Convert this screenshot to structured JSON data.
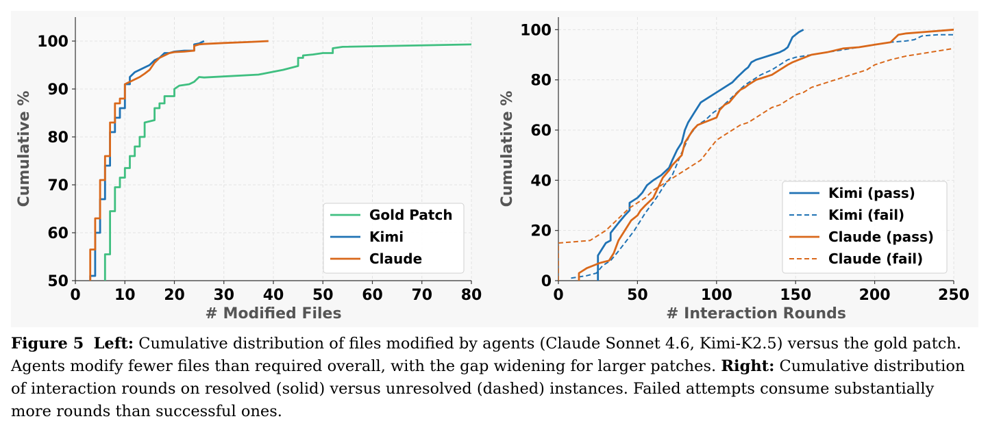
{
  "chart_data": [
    {
      "type": "line",
      "xlabel": "# Modified Files",
      "ylabel": "Cumulative %",
      "xlim": [
        0,
        80
      ],
      "ylim": [
        50,
        105
      ],
      "xticks": [
        "0",
        "10",
        "20",
        "30",
        "40",
        "50",
        "60",
        "70",
        "80"
      ],
      "yticks": [
        "50",
        "60",
        "70",
        "80",
        "90",
        "100"
      ],
      "grid": true,
      "legend_position": "lower-right",
      "series": [
        {
          "name": "Gold Patch",
          "color": "#3fbf80",
          "style": "solid",
          "x": [
            6,
            6,
            7,
            7,
            8,
            8,
            9,
            9,
            10,
            10,
            11,
            11,
            12,
            12,
            13,
            13,
            14,
            14,
            16,
            16,
            17,
            17,
            18,
            18,
            20,
            20,
            21,
            23,
            24,
            25,
            26,
            37,
            42,
            45,
            45,
            46,
            46,
            48,
            50,
            52,
            52,
            54,
            80
          ],
          "y": [
            50,
            55.5,
            55.5,
            64.5,
            64.5,
            69.5,
            69.5,
            71.5,
            71.5,
            73.5,
            73.5,
            76,
            76,
            78,
            78,
            80,
            80,
            83,
            83.5,
            86,
            86,
            87,
            87,
            88.5,
            88.5,
            90,
            90.7,
            91,
            91.5,
            92.5,
            92.4,
            93,
            94,
            94.8,
            96.5,
            96.5,
            97,
            97.2,
            97.5,
            97.5,
            98.5,
            98.8,
            99.3
          ]
        },
        {
          "name": "Kimi",
          "color": "#1f72b4",
          "style": "solid",
          "x": [
            3,
            3,
            4,
            4,
            5,
            5,
            6,
            6,
            7,
            7,
            8,
            8,
            9,
            9,
            10,
            10,
            11,
            11,
            12,
            13,
            14,
            15,
            16,
            17,
            18,
            19,
            20,
            22,
            24,
            24,
            25,
            26
          ],
          "y": [
            50,
            51,
            51,
            60,
            60,
            67,
            67,
            74,
            74,
            81,
            81,
            84,
            84,
            86,
            86,
            91,
            91,
            92.5,
            93.5,
            94,
            94.5,
            95,
            96,
            96.5,
            97.5,
            97.5,
            97.8,
            98,
            98,
            99.3,
            99.5,
            100
          ]
        },
        {
          "name": "Claude",
          "color": "#d9681a",
          "style": "solid",
          "x": [
            3,
            3,
            4,
            4,
            5,
            5,
            6,
            6,
            7,
            7,
            8,
            8,
            9,
            9,
            10,
            10,
            11,
            12,
            13,
            14,
            15,
            16,
            17,
            18,
            19,
            20,
            22,
            24,
            24,
            25,
            26,
            30,
            35,
            39
          ],
          "y": [
            50,
            56.5,
            56.5,
            63,
            63,
            71,
            71,
            76,
            76,
            83,
            83,
            87,
            87,
            88,
            88,
            91,
            91.5,
            92,
            92.5,
            93.2,
            94,
            95.5,
            96.5,
            97,
            97.5,
            97.7,
            97.8,
            98,
            99,
            99.3,
            99.4,
            99.6,
            99.8,
            100
          ]
        }
      ]
    },
    {
      "type": "line",
      "xlabel": "# Interaction Rounds",
      "ylabel": "Cumulative %",
      "xlim": [
        0,
        250
      ],
      "ylim": [
        0,
        105
      ],
      "xticks": [
        "0",
        "50",
        "100",
        "150",
        "200",
        "250"
      ],
      "yticks": [
        "0",
        "20",
        "40",
        "60",
        "80",
        "100"
      ],
      "grid": true,
      "legend_position": "lower-right",
      "series": [
        {
          "name": "Kimi (pass)",
          "color": "#1f72b4",
          "style": "solid",
          "x": [
            25,
            25,
            28,
            30,
            33,
            33,
            38,
            42,
            45,
            45,
            50,
            53,
            56,
            60,
            65,
            70,
            72,
            75,
            78,
            80,
            82,
            86,
            88,
            90,
            95,
            100,
            105,
            110,
            113,
            118,
            120,
            122,
            125,
            130,
            135,
            140,
            143,
            145,
            148,
            152,
            155
          ],
          "y": [
            0,
            10,
            13,
            15,
            16,
            19,
            23,
            26,
            28,
            31,
            33,
            35,
            38,
            40,
            42,
            45,
            48,
            52,
            55,
            60,
            63,
            67,
            69,
            71,
            73,
            75,
            77,
            79,
            81,
            84,
            85,
            87,
            88,
            89,
            90,
            91,
            92,
            93,
            97,
            99,
            100
          ]
        },
        {
          "name": "Kimi (fail)",
          "color": "#1f72b4",
          "style": "dashed",
          "x": [
            8,
            13,
            18,
            24,
            28,
            33,
            37,
            42,
            48,
            55,
            62,
            67,
            72,
            78,
            83,
            88,
            93,
            98,
            103,
            108,
            113,
            118,
            123,
            128,
            135,
            140,
            145,
            150,
            160,
            170,
            180,
            190,
            200,
            210,
            220,
            225,
            230,
            240,
            250
          ],
          "y": [
            1,
            1.5,
            2,
            3,
            6,
            8,
            11,
            15,
            20,
            27,
            33,
            38,
            42,
            51,
            58,
            62,
            64,
            67,
            69,
            72,
            75,
            78,
            80,
            82,
            84,
            86,
            88,
            89,
            90,
            91,
            92,
            93,
            94,
            95,
            95.5,
            96,
            97.5,
            98,
            98
          ]
        },
        {
          "name": "Claude (pass)",
          "color": "#d9681a",
          "style": "solid",
          "x": [
            13,
            13,
            18,
            22,
            26,
            32,
            35,
            38,
            42,
            46,
            50,
            52,
            55,
            60,
            63,
            66,
            70,
            72,
            75,
            78,
            80,
            82,
            85,
            88,
            92,
            96,
            100,
            102,
            105,
            108,
            112,
            115,
            118,
            120,
            125,
            130,
            135,
            140,
            145,
            148,
            152,
            156,
            160,
            170,
            180,
            190,
            200,
            210,
            215,
            220,
            230,
            240,
            250
          ],
          "y": [
            0,
            3,
            5,
            6,
            7,
            8,
            11,
            16,
            20,
            24,
            26,
            28,
            30,
            33,
            37,
            41,
            44,
            46,
            48,
            50,
            55,
            57,
            60,
            62,
            63,
            64,
            65,
            68,
            70,
            71,
            74,
            76,
            77,
            78,
            80,
            81,
            82,
            84,
            86,
            87,
            88,
            89,
            90,
            91,
            92.5,
            93,
            94,
            95,
            98,
            98.5,
            99,
            99.5,
            100
          ]
        },
        {
          "name": "Claude (fail)",
          "color": "#d9681a",
          "style": "dashed",
          "x": [
            0,
            0,
            10,
            20,
            25,
            30,
            35,
            40,
            45,
            50,
            55,
            60,
            65,
            70,
            75,
            80,
            85,
            90,
            95,
            100,
            105,
            110,
            115,
            120,
            125,
            130,
            135,
            140,
            145,
            150,
            155,
            160,
            165,
            170,
            175,
            180,
            185,
            190,
            195,
            200,
            210,
            220,
            230,
            240,
            250
          ],
          "y": [
            0,
            15,
            15.5,
            16,
            18,
            20,
            23,
            26,
            29,
            31,
            33,
            36,
            38,
            40,
            42,
            44,
            46,
            48,
            52,
            56,
            58,
            60,
            62,
            63,
            65,
            67,
            69,
            70,
            72,
            74,
            75,
            77,
            78,
            79,
            80,
            81,
            82,
            83,
            84,
            86,
            88,
            89.5,
            90.5,
            91.5,
            92.5
          ]
        }
      ]
    }
  ],
  "caption": {
    "prefix": "Figure 5",
    "left_label": "Left:",
    "left_text": " Cumulative distribution of files modified by agents (Claude Sonnet 4.6, Kimi-K2.5) versus the gold patch. Agents modify fewer files than required overall, with the gap widening for larger patches. ",
    "right_label": "Right:",
    "right_text": " Cumulative distribution of interaction rounds on resolved (solid) versus unresolved (dashed) instances. Failed attempts consume substantially more rounds than successful ones."
  }
}
